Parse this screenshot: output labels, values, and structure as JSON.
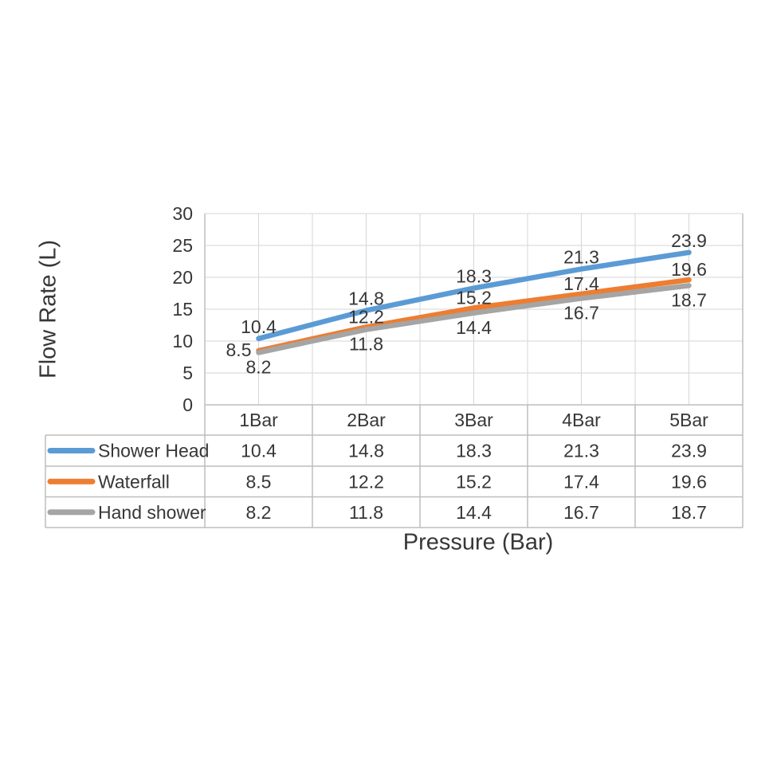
{
  "chart_data": {
    "type": "line",
    "title": "",
    "xlabel": "Pressure (Bar)",
    "ylabel": "Flow Rate (L)",
    "categories": [
      "1Bar",
      "2Bar",
      "3Bar",
      "4Bar",
      "5Bar"
    ],
    "series": [
      {
        "name": "Shower Head",
        "color": "#5B9BD5",
        "values": [
          10.4,
          14.8,
          18.3,
          21.3,
          23.9
        ]
      },
      {
        "name": "Waterfall",
        "color": "#ED7D31",
        "values": [
          8.5,
          12.2,
          15.2,
          17.4,
          19.6
        ]
      },
      {
        "name": "Hand shower",
        "color": "#A5A5A5",
        "values": [
          8.2,
          11.8,
          14.4,
          16.7,
          18.7
        ]
      }
    ],
    "ylim": [
      0,
      30
    ],
    "yticks": [
      0,
      5,
      10,
      15,
      20,
      25,
      30
    ],
    "grid": true,
    "data_labels": true,
    "data_table_with_legend_keys": true,
    "legend_position": "table-left"
  },
  "styles": {
    "background": "#ffffff",
    "text_color": "#373737",
    "gridline_color": "#d6d6d6",
    "border_color": "#bdbdbd"
  }
}
